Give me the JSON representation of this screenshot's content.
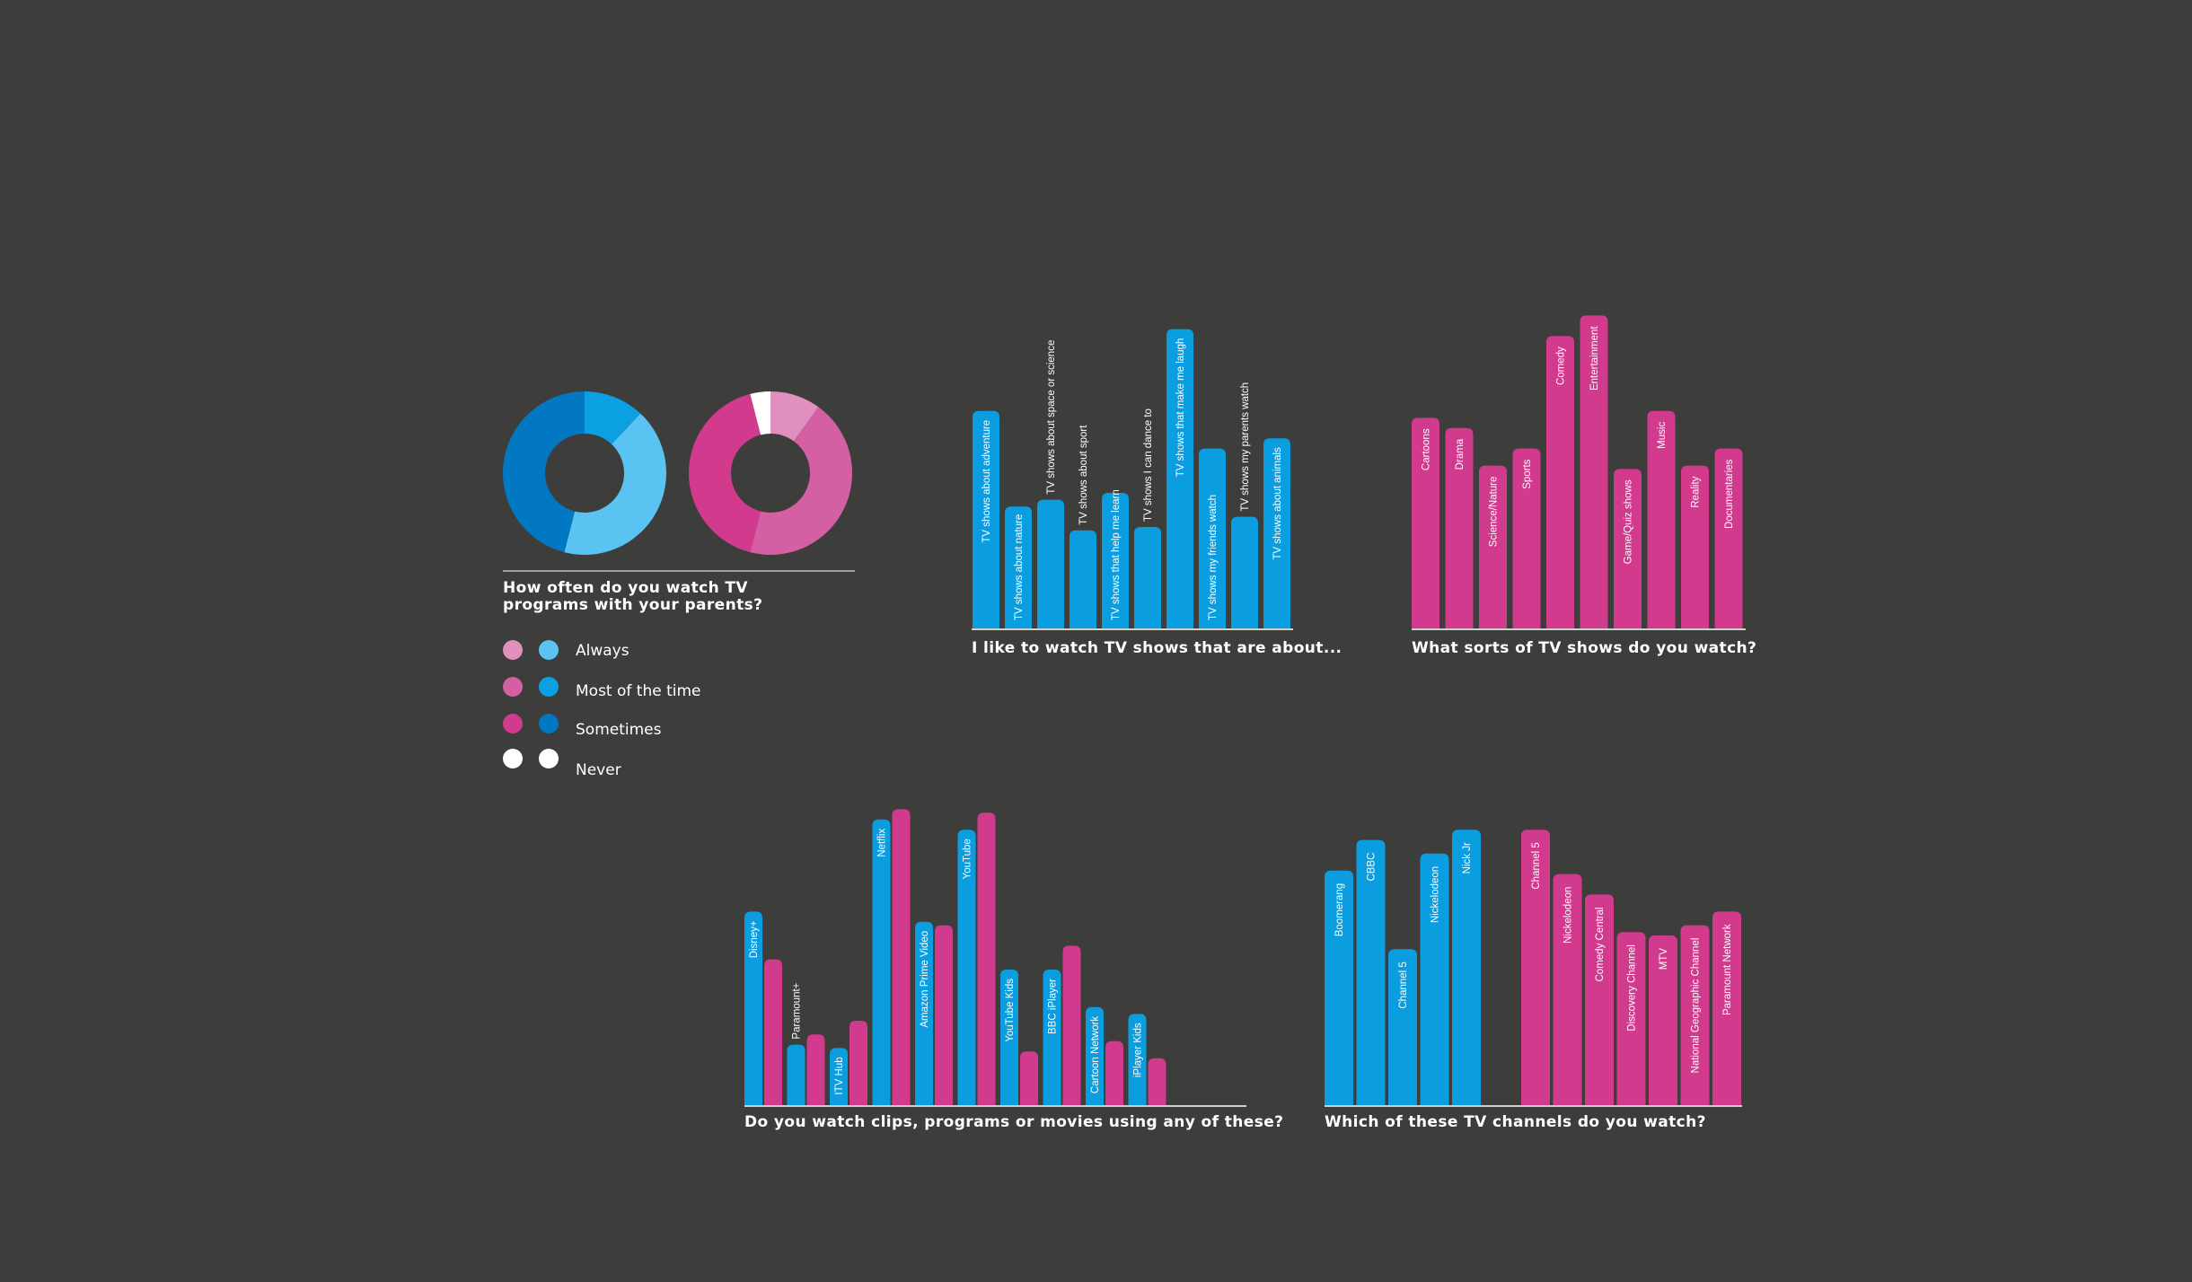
{
  "colors": {
    "background": "#3d3d3c",
    "blue": "#0a9ee0",
    "pink": "#d23a8e",
    "light_blue": "#5bc3f1",
    "mid_blue": "#0aa0e2",
    "dark_blue": "#0277c2",
    "light_pink": "#e090bf",
    "mid_pink": "#d460a3",
    "dark_pink": "#d23a8e",
    "white": "#ffffff"
  },
  "chart_data": [
    {
      "id": "donuts",
      "type": "pie",
      "title_lines": [
        "How often do you watch TV",
        "programs with your parents?"
      ],
      "legend": [
        "Always",
        "Most of the time",
        "Sometimes",
        "Never"
      ],
      "series": [
        {
          "values": [
            42,
            12,
            46,
            0
          ]
        },
        {
          "values": [
            10,
            44,
            42,
            4
          ]
        }
      ]
    },
    {
      "id": "about",
      "type": "bar",
      "title": "I like to watch TV shows that are about...",
      "categories": [
        "TV shows about adventure",
        "TV shows about nature",
        "TV shows about space or science",
        "TV shows about sport",
        "TV shows that help me learn",
        "TV shows I can dance to",
        "TV shows that make me laugh",
        "TV shows my friends watch",
        "TV shows my parents watch",
        "TV shows about animals"
      ],
      "values": [
        64,
        36,
        38,
        29,
        40,
        30,
        88,
        53,
        33,
        56
      ]
    },
    {
      "id": "sorts",
      "type": "bar",
      "title": "What sorts of TV shows do you watch?",
      "categories": [
        "Cartoons",
        "Drama",
        "Science/Nature",
        "Sports",
        "Comedy",
        "Entertainment",
        "Game/Quiz shows",
        "Music",
        "Reality",
        "Documentaries"
      ],
      "values": [
        62,
        59,
        48,
        53,
        86,
        92,
        47,
        64,
        48,
        53
      ]
    },
    {
      "id": "clips",
      "type": "bar",
      "title": "Do you watch clips, programs or movies using any of these?",
      "categories": [
        "Disney+",
        "Paramount+",
        "ITV Hub",
        "Netflix",
        "Amazon Prime Video",
        "YouTube",
        "YouTube Kids",
        "BBC iPlayer",
        "Cartoon Network",
        "iPlayer Kids"
      ],
      "series": [
        {
          "values": [
            57,
            18,
            17,
            84,
            54,
            81,
            40,
            40,
            29,
            27
          ]
        },
        {
          "values": [
            43,
            21,
            25,
            87,
            53,
            86,
            16,
            47,
            19,
            14
          ]
        }
      ]
    },
    {
      "id": "channels",
      "type": "bar",
      "title": "Which of these TV channels do you watch?",
      "groups": [
        {
          "categories": [
            "Boomerang",
            "CBBC",
            "Channel 5",
            "Nickelodeon",
            "Nick Jr"
          ],
          "values": [
            69,
            78,
            46,
            74,
            81
          ]
        },
        {
          "categories": [
            "Channel 5",
            "Nickelodeon",
            "Comedy Central",
            "Discovery Channel",
            "MTV",
            "National Geographic Channel",
            "Paramount Network"
          ],
          "values": [
            81,
            68,
            62,
            51,
            50,
            53,
            57
          ]
        }
      ]
    }
  ]
}
